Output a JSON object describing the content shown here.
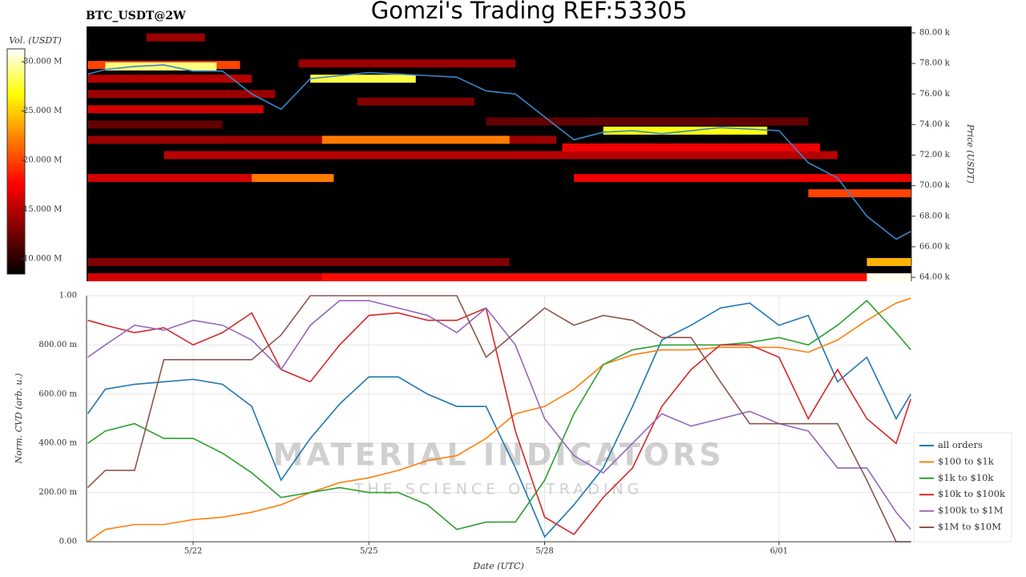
{
  "watermark": {
    "title": "MATERIAL INDICATORS",
    "subtitle": "THE SCIENCE OF TRADING"
  },
  "chart_data": [
    {
      "type": "heatmap",
      "title": "Gomzi's Trading REF:53305",
      "subtitle": "BTC_USDT@2W",
      "ylabel": "Price (USDT)",
      "xlim": [
        20.18,
        34.26
      ],
      "ylim": [
        63.74,
        80.42
      ],
      "yticks": [
        {
          "value": 64,
          "label": "64.00 k"
        },
        {
          "value": 66,
          "label": "66.00 k"
        },
        {
          "value": 68,
          "label": "68.00 k"
        },
        {
          "value": 70,
          "label": "70.00 k"
        },
        {
          "value": 72,
          "label": "72.00 k"
        },
        {
          "value": 74,
          "label": "74.00 k"
        },
        {
          "value": 76,
          "label": "76.00 k"
        },
        {
          "value": 78,
          "label": "78.00 k"
        },
        {
          "value": 80,
          "label": "80.00 k"
        }
      ],
      "colorbar": {
        "label": "Vol. (USDT)",
        "lim": [
          8.45,
          31.3
        ],
        "ticks": [
          {
            "value": 10,
            "label": "10.000 M"
          },
          {
            "value": 15,
            "label": "15.000 M"
          },
          {
            "value": 20,
            "label": "20.000 M"
          },
          {
            "value": 25,
            "label": "25.000 M"
          },
          {
            "value": 30,
            "label": "30.000 M"
          }
        ]
      },
      "cells": [
        {
          "start": 21.2,
          "end": 22.2,
          "price": 79.7,
          "volume": 14
        },
        {
          "start": 20.2,
          "end": 22.8,
          "price": 77.9,
          "volume": 20
        },
        {
          "start": 20.2,
          "end": 23.0,
          "price": 77.0,
          "volume": 15
        },
        {
          "start": 20.2,
          "end": 23.4,
          "price": 76.0,
          "volume": 14
        },
        {
          "start": 20.2,
          "end": 23.2,
          "price": 75.0,
          "volume": 16
        },
        {
          "start": 20.2,
          "end": 22.5,
          "price": 74.0,
          "volume": 12
        },
        {
          "start": 20.2,
          "end": 28.2,
          "price": 73.0,
          "volume": 14
        },
        {
          "start": 24.2,
          "end": 27.4,
          "price": 73.0,
          "volume": 22
        },
        {
          "start": 21.5,
          "end": 33.0,
          "price": 72.0,
          "volume": 15
        },
        {
          "start": 20.2,
          "end": 24.3,
          "price": 70.5,
          "volume": 16
        },
        {
          "start": 23.0,
          "end": 24.4,
          "price": 70.5,
          "volume": 22
        },
        {
          "start": 28.5,
          "end": 34.3,
          "price": 70.5,
          "volume": 17
        },
        {
          "start": 23.8,
          "end": 27.5,
          "price": 78.0,
          "volume": 14
        },
        {
          "start": 24.8,
          "end": 26.8,
          "price": 75.5,
          "volume": 13
        },
        {
          "start": 28.3,
          "end": 32.7,
          "price": 72.5,
          "volume": 17
        },
        {
          "start": 27.0,
          "end": 32.5,
          "price": 74.2,
          "volume": 12
        },
        {
          "start": 20.2,
          "end": 27.4,
          "price": 65.0,
          "volume": 13
        },
        {
          "start": 20.2,
          "end": 34.3,
          "price": 64.0,
          "volume": 16
        },
        {
          "start": 24.2,
          "end": 34.3,
          "price": 64.0,
          "volume": 18
        },
        {
          "start": 33.5,
          "end": 34.3,
          "price": 64.0,
          "volume": 31
        },
        {
          "start": 33.5,
          "end": 34.3,
          "price": 65.0,
          "volume": 24
        },
        {
          "start": 32.5,
          "end": 34.3,
          "price": 69.5,
          "volume": 20
        },
        {
          "start": 20.5,
          "end": 22.4,
          "price": 77.8,
          "volume": 29
        },
        {
          "start": 24.0,
          "end": 25.8,
          "price": 77.0,
          "volume": 28
        },
        {
          "start": 29.0,
          "end": 31.8,
          "price": 73.6,
          "volume": 27
        }
      ],
      "price_line": {
        "color": "#3a86c8",
        "x": [
          20.2,
          20.5,
          21,
          21.5,
          22,
          22.5,
          23,
          23.5,
          24,
          24.5,
          25,
          25.5,
          26,
          26.5,
          27,
          27.5,
          28,
          28.5,
          29,
          29.5,
          30,
          30.5,
          31,
          31.5,
          32,
          32.5,
          33,
          33.5,
          34,
          34.25
        ],
        "values": [
          77.3,
          77.6,
          77.8,
          77.9,
          77.5,
          77.5,
          76.0,
          75.0,
          77.0,
          77.2,
          77.4,
          77.3,
          77.2,
          77.1,
          76.2,
          76.0,
          74.5,
          73.0,
          73.5,
          73.6,
          73.4,
          73.6,
          73.8,
          73.7,
          73.6,
          71.5,
          70.5,
          68.0,
          66.5,
          67.0
        ]
      }
    },
    {
      "type": "line",
      "xlabel": "Date (UTC)",
      "ylabel": "Norm. CVD (arb. u.)",
      "grid": true,
      "legend": "lower right",
      "xlim": [
        20.18,
        34.26
      ],
      "ylim": [
        0,
        1
      ],
      "xticks": [
        {
          "value": 22,
          "label": "5/22"
        },
        {
          "value": 25,
          "label": "5/25"
        },
        {
          "value": 28,
          "label": "5/28"
        },
        {
          "value": 32,
          "label": "6/01"
        }
      ],
      "yticks": [
        {
          "value": 0,
          "label": "0.00"
        },
        {
          "value": 0.2,
          "label": "200.00 m"
        },
        {
          "value": 0.4,
          "label": "400.00 m"
        },
        {
          "value": 0.6,
          "label": "600.00 m"
        },
        {
          "value": 0.8,
          "label": "800.00 m"
        },
        {
          "value": 1,
          "label": "1.00"
        }
      ],
      "x": [
        20.2,
        20.5,
        21,
        21.5,
        22,
        22.5,
        23,
        23.5,
        24,
        24.5,
        25,
        25.5,
        26,
        26.5,
        27,
        27.5,
        28,
        28.5,
        29,
        29.5,
        30,
        30.5,
        31,
        31.5,
        32,
        32.5,
        33,
        33.5,
        34,
        34.25
      ],
      "series": [
        {
          "name": "all orders",
          "color": "#1f77b4",
          "values": [
            0.52,
            0.62,
            0.64,
            0.65,
            0.66,
            0.64,
            0.55,
            0.25,
            0.42,
            0.56,
            0.67,
            0.67,
            0.6,
            0.55,
            0.55,
            0.3,
            0.02,
            0.15,
            0.3,
            0.55,
            0.82,
            0.88,
            0.95,
            0.97,
            0.88,
            0.92,
            0.65,
            0.75,
            0.5,
            0.6
          ]
        },
        {
          "name": "$100 to $1k",
          "color": "#ff7f0e",
          "values": [
            0.0,
            0.05,
            0.07,
            0.07,
            0.09,
            0.1,
            0.12,
            0.15,
            0.2,
            0.24,
            0.26,
            0.29,
            0.33,
            0.35,
            0.42,
            0.52,
            0.55,
            0.62,
            0.72,
            0.76,
            0.78,
            0.78,
            0.79,
            0.79,
            0.79,
            0.77,
            0.82,
            0.9,
            0.97,
            0.99
          ]
        },
        {
          "name": "$1k to $10k",
          "color": "#2ca02c",
          "values": [
            0.4,
            0.45,
            0.48,
            0.42,
            0.42,
            0.36,
            0.28,
            0.18,
            0.2,
            0.22,
            0.2,
            0.2,
            0.15,
            0.05,
            0.08,
            0.08,
            0.25,
            0.52,
            0.72,
            0.78,
            0.8,
            0.8,
            0.8,
            0.81,
            0.83,
            0.8,
            0.88,
            0.98,
            0.85,
            0.78
          ]
        },
        {
          "name": "$10k to $100k",
          "color": "#d62728",
          "values": [
            0.9,
            0.88,
            0.85,
            0.87,
            0.8,
            0.85,
            0.93,
            0.7,
            0.65,
            0.8,
            0.92,
            0.93,
            0.9,
            0.9,
            0.95,
            0.45,
            0.1,
            0.03,
            0.18,
            0.3,
            0.55,
            0.7,
            0.8,
            0.8,
            0.75,
            0.5,
            0.7,
            0.5,
            0.4,
            0.58
          ]
        },
        {
          "name": "$100k to $1M",
          "color": "#9467bd",
          "values": [
            0.75,
            0.8,
            0.88,
            0.86,
            0.9,
            0.88,
            0.82,
            0.7,
            0.88,
            0.98,
            0.98,
            0.95,
            0.92,
            0.85,
            0.95,
            0.8,
            0.5,
            0.35,
            0.28,
            0.4,
            0.52,
            0.47,
            0.5,
            0.53,
            0.48,
            0.45,
            0.3,
            0.3,
            0.12,
            0.05
          ]
        },
        {
          "name": "$1M to $10M",
          "color": "#8c564b",
          "values": [
            0.22,
            0.29,
            0.29,
            0.74,
            0.74,
            0.74,
            0.74,
            0.84,
            1,
            1,
            1,
            1,
            1,
            1,
            0.75,
            0.85,
            0.95,
            0.88,
            0.92,
            0.9,
            0.83,
            0.83,
            0.65,
            0.48,
            0.48,
            0.48,
            0.48,
            0.25,
            0,
            0
          ]
        }
      ]
    }
  ]
}
